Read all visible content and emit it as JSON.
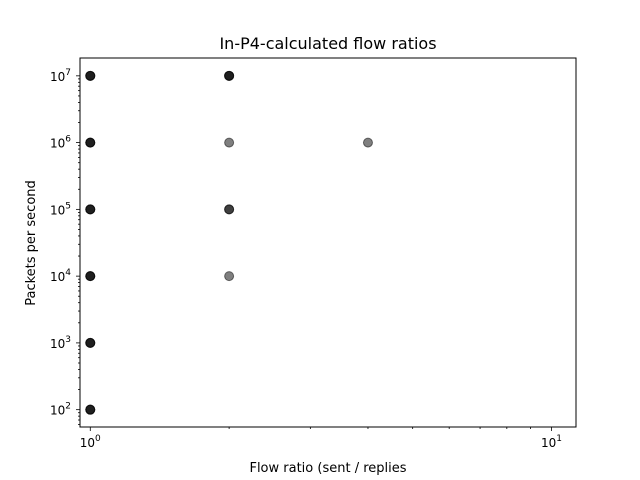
{
  "chart_data": {
    "type": "scatter",
    "title": "In-P4-calculated flow ratios",
    "xlabel": "Flow ratio (sent / replies",
    "ylabel": "Packets per second",
    "x_scale": "log",
    "y_scale": "log",
    "xlim": [
      0.95,
      11.3
    ],
    "ylim": [
      55,
      18500000
    ],
    "grid": false,
    "marker_color": "#000000",
    "marker_alpha": 0.5,
    "x_ticks": [
      {
        "value": 1,
        "base": "10",
        "exp": "0"
      },
      {
        "value": 10,
        "base": "10",
        "exp": "1"
      }
    ],
    "y_ticks": [
      {
        "value": 100,
        "base": "10",
        "exp": "2"
      },
      {
        "value": 1000,
        "base": "10",
        "exp": "3"
      },
      {
        "value": 10000,
        "base": "10",
        "exp": "4"
      },
      {
        "value": 100000,
        "base": "10",
        "exp": "5"
      },
      {
        "value": 1000000,
        "base": "10",
        "exp": "6"
      },
      {
        "value": 10000000,
        "base": "10",
        "exp": "7"
      }
    ],
    "points": [
      {
        "x": 1,
        "y": 100
      },
      {
        "x": 1,
        "y": 100
      },
      {
        "x": 1,
        "y": 100
      },
      {
        "x": 1,
        "y": 1000
      },
      {
        "x": 1,
        "y": 1000
      },
      {
        "x": 1,
        "y": 1000
      },
      {
        "x": 1,
        "y": 10000
      },
      {
        "x": 1,
        "y": 10000
      },
      {
        "x": 1,
        "y": 10000
      },
      {
        "x": 1,
        "y": 100000
      },
      {
        "x": 1,
        "y": 100000
      },
      {
        "x": 1,
        "y": 100000
      },
      {
        "x": 1,
        "y": 1000000
      },
      {
        "x": 1,
        "y": 1000000
      },
      {
        "x": 1,
        "y": 1000000
      },
      {
        "x": 1,
        "y": 10000000
      },
      {
        "x": 1,
        "y": 10000000
      },
      {
        "x": 1,
        "y": 10000000
      },
      {
        "x": 2,
        "y": 10000000
      },
      {
        "x": 2,
        "y": 10000000
      },
      {
        "x": 2,
        "y": 10000000
      },
      {
        "x": 2,
        "y": 1000000
      },
      {
        "x": 2,
        "y": 100000
      },
      {
        "x": 2,
        "y": 100000
      },
      {
        "x": 2,
        "y": 10000
      },
      {
        "x": 4,
        "y": 1000000
      }
    ]
  }
}
